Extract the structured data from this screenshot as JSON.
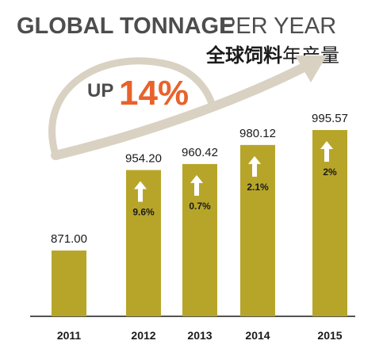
{
  "header": {
    "title_bold": "GLOBAL TONNAGE",
    "title_light": "PER YEAR",
    "subtitle_bold": "全球饲料",
    "subtitle_light": "年产量"
  },
  "callout": {
    "prefix": "UP",
    "value": "14%"
  },
  "colors": {
    "bar": "#b7a52a",
    "arrow": "#d9d2c3",
    "callout_arc": "#d9d2c3",
    "callout_value": "#e8622c",
    "title_dark": "#4d4d4d",
    "text": "#1a1a1a",
    "up_arrow_fill": "#ffffff"
  },
  "chart_data": {
    "type": "bar",
    "categories": [
      "2011",
      "2012",
      "2013",
      "2014",
      "2015"
    ],
    "values": [
      871.0,
      954.2,
      960.42,
      980.12,
      995.57
    ],
    "value_labels": [
      "871.00",
      "954.20",
      "960.42",
      "980.12",
      "995.57"
    ],
    "growth_labels": [
      "",
      "9.6%",
      "0.7%",
      "2.1%",
      "2%"
    ],
    "ylim": [
      800,
      1000
    ],
    "grid": false,
    "title": "GLOBAL TONNAGE PER YEAR"
  }
}
